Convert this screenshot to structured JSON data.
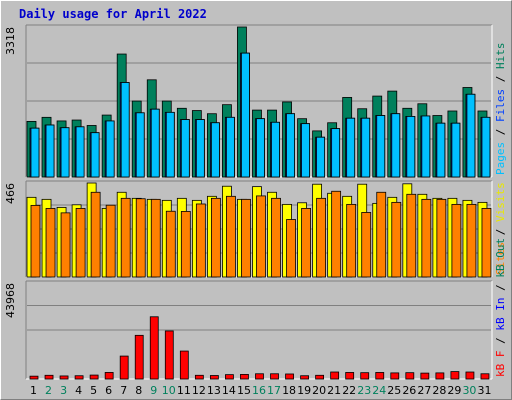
{
  "title": "Daily usage for April 2022",
  "chart_data": [
    {
      "type": "bar",
      "name": "hits-files-pages",
      "ymax_label": "3318",
      "ylim": [
        0,
        3318
      ],
      "right_label": [
        {
          "text": "Pages",
          "color": "#00c0ff"
        },
        {
          "text": " / ",
          "color": "#000000"
        },
        {
          "text": "Files",
          "color": "#0040ff"
        },
        {
          "text": " / ",
          "color": "#000000"
        },
        {
          "text": "Hits",
          "color": "#00805c"
        }
      ],
      "categories": [
        "1",
        "2",
        "3",
        "4",
        "5",
        "6",
        "7",
        "8",
        "9",
        "10",
        "11",
        "12",
        "13",
        "14",
        "15",
        "16",
        "17",
        "18",
        "19",
        "20",
        "21",
        "22",
        "23",
        "24",
        "25",
        "26",
        "27",
        "28",
        "29",
        "30",
        "31"
      ],
      "series": [
        {
          "name": "Hits",
          "color": "#00805c",
          "values": [
            1230,
            1320,
            1240,
            1260,
            1140,
            1370,
            2720,
            1680,
            2150,
            1680,
            1520,
            1470,
            1400,
            1600,
            3318,
            1480,
            1480,
            1660,
            1290,
            1020,
            1200,
            1760,
            1510,
            1790,
            1900,
            1520,
            1620,
            1360,
            1460,
            1980,
            1460
          ]
        },
        {
          "name": "Files",
          "color": "#0040ff",
          "values": [
            1080,
            1150,
            1090,
            1110,
            980,
            1240,
            2090,
            1420,
            1500,
            1430,
            1270,
            1270,
            1200,
            1320,
            2740,
            1290,
            1210,
            1400,
            1180,
            880,
            1070,
            1300,
            1300,
            1360,
            1400,
            1340,
            1350,
            1190,
            1190,
            1830,
            1320
          ]
        },
        {
          "name": "Pages",
          "color": "#00c0ff",
          "values": [
            1080,
            1150,
            1090,
            1110,
            980,
            1240,
            2090,
            1420,
            1500,
            1430,
            1270,
            1270,
            1200,
            1320,
            2740,
            1290,
            1210,
            1400,
            1180,
            880,
            1070,
            1300,
            1300,
            1360,
            1400,
            1340,
            1350,
            1190,
            1190,
            1830,
            1320
          ]
        }
      ]
    },
    {
      "type": "bar",
      "name": "visits-sites",
      "ymax_label": "466",
      "ylim": [
        0,
        466
      ],
      "right_label": [
        {
          "text": "Sites",
          "color": "#ff8000"
        },
        {
          "text": " / ",
          "color": "#000000"
        },
        {
          "text": "Visits",
          "color": "#e8e800"
        }
      ],
      "categories": [
        "1",
        "2",
        "3",
        "4",
        "5",
        "6",
        "7",
        "8",
        "9",
        "10",
        "11",
        "12",
        "13",
        "14",
        "15",
        "16",
        "17",
        "18",
        "19",
        "20",
        "21",
        "22",
        "23",
        "24",
        "25",
        "26",
        "27",
        "28",
        "29",
        "30",
        "31"
      ],
      "series": [
        {
          "name": "Visits",
          "color": "#ffff00",
          "values": [
            395,
            385,
            345,
            358,
            466,
            340,
            420,
            390,
            385,
            380,
            390,
            380,
            400,
            450,
            385,
            448,
            420,
            360,
            368,
            460,
            415,
            400,
            460,
            365,
            395,
            462,
            410,
            390,
            390,
            380,
            370
          ]
        },
        {
          "name": "Sites",
          "color": "#ff8000",
          "values": [
            355,
            340,
            318,
            340,
            420,
            356,
            390,
            388,
            385,
            326,
            325,
            362,
            390,
            400,
            385,
            402,
            390,
            285,
            340,
            390,
            425,
            360,
            320,
            420,
            370,
            410,
            385,
            385,
            360,
            360,
            340
          ]
        }
      ]
    },
    {
      "type": "bar",
      "name": "kbytes",
      "ymax_label": "43968",
      "ylim": [
        0,
        43968
      ],
      "right_label": [
        {
          "text": "kB F",
          "color": "#ff0000"
        },
        {
          "text": " / ",
          "color": "#000000"
        },
        {
          "text": "kB In",
          "color": "#0000ff"
        },
        {
          "text": " / ",
          "color": "#000000"
        },
        {
          "text": "kB Out",
          "color": "#00805c"
        }
      ],
      "categories": [
        "1",
        "2",
        "3",
        "4",
        "5",
        "6",
        "7",
        "8",
        "9",
        "10",
        "11",
        "12",
        "13",
        "14",
        "15",
        "16",
        "17",
        "18",
        "19",
        "20",
        "21",
        "22",
        "23",
        "24",
        "25",
        "26",
        "27",
        "28",
        "29",
        "30",
        "31"
      ],
      "series": [
        {
          "name": "kB F",
          "color": "#ff0000",
          "values": [
            1300,
            1700,
            1400,
            1500,
            1800,
            3000,
            10500,
            20000,
            28500,
            22000,
            12800,
            1700,
            1600,
            2000,
            2100,
            2400,
            2400,
            2300,
            1500,
            1700,
            3200,
            3000,
            2900,
            3000,
            2800,
            2900,
            2700,
            2800,
            3400,
            3200,
            2400
          ]
        }
      ]
    }
  ],
  "weekend_days": [
    "2",
    "3",
    "9",
    "10",
    "16",
    "17",
    "23",
    "24",
    "30"
  ],
  "colors": {
    "weekday_label": "#000000",
    "weekend_label": "#00805c",
    "title": "#0000cc",
    "panel_bg": "#c0c0c0",
    "grid": "#808080"
  }
}
